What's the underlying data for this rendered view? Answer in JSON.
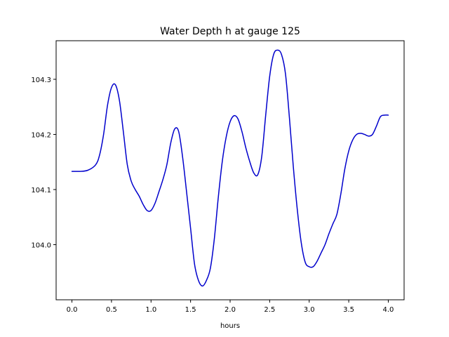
{
  "chart_data": {
    "type": "line",
    "title": "Water Depth h at gauge 125",
    "xlabel": "hours",
    "ylabel": "",
    "xlim": [
      -0.2,
      4.2
    ],
    "ylim": [
      103.9,
      104.37
    ],
    "xticks": [
      0.0,
      0.5,
      1.0,
      1.5,
      2.0,
      2.5,
      3.0,
      3.5,
      4.0
    ],
    "xtick_labels": [
      "0.0",
      "0.5",
      "1.0",
      "1.5",
      "2.0",
      "2.5",
      "3.0",
      "3.5",
      "4.0"
    ],
    "yticks": [
      104.0,
      104.1,
      104.2,
      104.3
    ],
    "ytick_labels": [
      "104.0",
      "104.1",
      "104.2",
      "104.3"
    ],
    "grid": false,
    "series": [
      {
        "color": "#0000cc",
        "x": [
          0.0,
          0.1,
          0.2,
          0.3,
          0.35,
          0.4,
          0.45,
          0.5,
          0.55,
          0.6,
          0.65,
          0.7,
          0.75,
          0.8,
          0.85,
          0.9,
          0.95,
          1.0,
          1.05,
          1.1,
          1.15,
          1.2,
          1.25,
          1.3,
          1.35,
          1.4,
          1.45,
          1.5,
          1.55,
          1.6,
          1.65,
          1.7,
          1.75,
          1.8,
          1.85,
          1.9,
          1.95,
          2.0,
          2.05,
          2.1,
          2.15,
          2.2,
          2.25,
          2.3,
          2.35,
          2.4,
          2.45,
          2.5,
          2.55,
          2.6,
          2.65,
          2.7,
          2.75,
          2.8,
          2.85,
          2.9,
          2.95,
          3.0,
          3.05,
          3.1,
          3.15,
          3.2,
          3.25,
          3.3,
          3.35,
          3.4,
          3.45,
          3.5,
          3.55,
          3.6,
          3.65,
          3.7,
          3.75,
          3.8,
          3.85,
          3.9,
          3.95,
          4.0
        ],
        "y": [
          104.133,
          104.133,
          104.135,
          104.145,
          104.163,
          104.2,
          104.253,
          104.285,
          104.29,
          104.262,
          104.205,
          104.145,
          104.115,
          104.1,
          104.088,
          104.073,
          104.062,
          104.062,
          104.075,
          104.096,
          104.118,
          104.145,
          104.185,
          104.21,
          104.205,
          104.158,
          104.095,
          104.03,
          103.965,
          103.935,
          103.925,
          103.935,
          103.957,
          104.01,
          104.085,
          104.15,
          104.195,
          104.223,
          104.234,
          104.228,
          104.205,
          104.175,
          104.15,
          104.13,
          104.127,
          104.16,
          104.235,
          104.305,
          104.345,
          104.353,
          104.345,
          104.31,
          104.23,
          104.14,
          104.063,
          104.003,
          103.968,
          103.96,
          103.96,
          103.97,
          103.985,
          104.0,
          104.02,
          104.038,
          104.055,
          104.092,
          104.137,
          104.17,
          104.19,
          104.2,
          104.202,
          104.2,
          104.197,
          104.2,
          104.215,
          104.232,
          104.235,
          104.235
        ]
      }
    ]
  }
}
